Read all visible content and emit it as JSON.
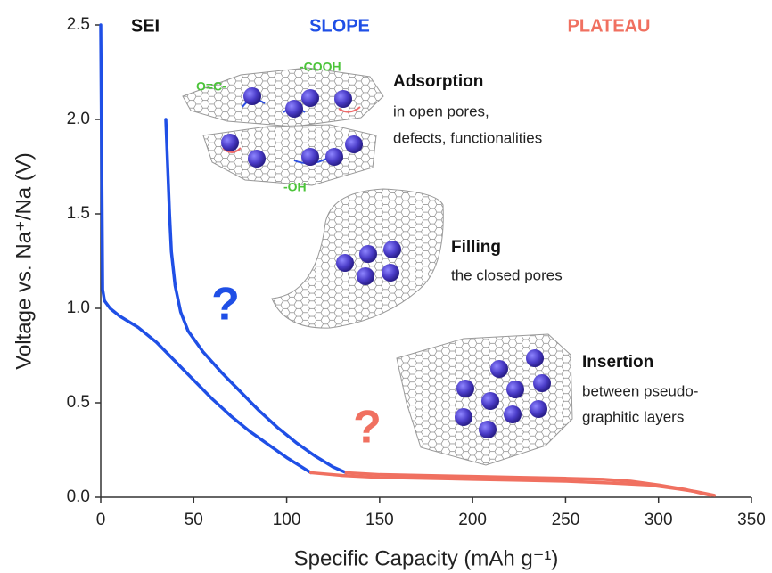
{
  "chart_data": {
    "type": "line",
    "x_label": "Specific Capacity (mAh g⁻¹)",
    "y_label": "Voltage vs. Na⁺/Na (V)",
    "xlim": [
      0,
      350
    ],
    "ylim": [
      0,
      2.5
    ],
    "xticks": [
      0,
      50,
      100,
      150,
      200,
      250,
      300,
      350
    ],
    "yticks": [
      {
        "value": 0,
        "label": "0.0"
      },
      0.5,
      {
        "value": 1,
        "label": "1.0"
      },
      1.5,
      {
        "value": 2,
        "label": "2.0"
      },
      2.5
    ],
    "series": [
      {
        "color": "#1f4fe6",
        "x": [
          0,
          0.5,
          1,
          2,
          5,
          10,
          20,
          30,
          40,
          50,
          60,
          70,
          80,
          90,
          100,
          113
        ],
        "values": [
          2.5,
          1.8,
          1.1,
          1.04,
          1.0,
          0.96,
          0.9,
          0.82,
          0.72,
          0.62,
          0.52,
          0.43,
          0.35,
          0.28,
          0.21,
          0.13
        ]
      },
      {
        "color": "#f07060",
        "x": [
          113,
          130,
          150,
          175,
          200,
          225,
          250,
          275,
          295,
          310,
          320,
          330
        ],
        "values": [
          0.13,
          0.115,
          0.105,
          0.1,
          0.095,
          0.09,
          0.085,
          0.075,
          0.065,
          0.045,
          0.03,
          0.01
        ]
      },
      {
        "color": "#1f4fe6",
        "x": [
          35,
          36,
          37,
          38,
          40,
          43,
          47,
          55,
          65,
          75,
          85,
          95,
          105,
          115,
          125,
          132
        ],
        "values": [
          2.0,
          1.75,
          1.5,
          1.3,
          1.12,
          0.98,
          0.88,
          0.77,
          0.66,
          0.56,
          0.46,
          0.37,
          0.29,
          0.22,
          0.16,
          0.13
        ]
      },
      {
        "color": "#f07060",
        "x": [
          132,
          150,
          175,
          200,
          225,
          250,
          270,
          285,
          300,
          315,
          328
        ],
        "values": [
          0.13,
          0.12,
          0.115,
          0.11,
          0.105,
          0.1,
          0.095,
          0.085,
          0.065,
          0.04,
          0.01
        ]
      }
    ],
    "region_labels": [
      "SEI",
      "SLOPE",
      "PLATEAU"
    ],
    "question_marks": [
      "?",
      "?"
    ],
    "chemical_groups": [
      "O=C-",
      "-COOH",
      "-OH"
    ],
    "illustrations": [
      {
        "title": "Adsorption",
        "lines": [
          "in open pores,",
          "defects, functionalities"
        ]
      },
      {
        "title": "Filling",
        "lines": [
          "the closed pores"
        ]
      },
      {
        "title": "Insertion",
        "lines": [
          "between pseudo-",
          "graphitic layers"
        ]
      }
    ]
  }
}
